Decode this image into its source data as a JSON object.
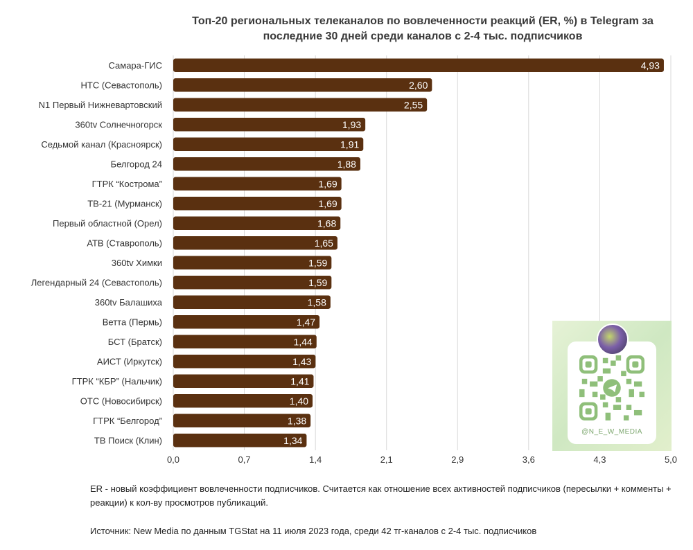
{
  "chart_data": {
    "type": "bar",
    "orientation": "horizontal",
    "title": "Топ-20 региональных телеканалов по вовлеченности реакций (ER, %) в Telegram за последние 30 дней среди каналов с 2-4 тыс. подписчиков",
    "title_lines": [
      "Топ-20 региональных телеканалов по вовлеченности реакций (ER, %) в Telegram за",
      "последние 30 дней среди каналов с 2-4 тыс. подписчиков"
    ],
    "categories": [
      "Самара-ГИС",
      "НТС (Севастополь)",
      "N1 Первый Нижневартовский",
      "360tv Солнечногорск",
      "Седьмой канал (Красноярск)",
      "Белгород 24",
      "ГТРК “Кострома”",
      "ТВ-21 (Мурманск)",
      "Первый областной (Орел)",
      "АТВ (Ставрополь)",
      "360tv Химки",
      "Легендарный 24 (Севастополь)",
      "360tv Балашиха",
      "Ветта (Пермь)",
      "БСТ (Братск)",
      "АИСТ (Иркутск)",
      "ГТРК “КБР” (Нальчик)",
      "ОТС (Новосибирск)",
      "ГТРК “Белгород”",
      "ТВ Поиск (Клин)"
    ],
    "values": [
      4.93,
      2.6,
      2.55,
      1.93,
      1.91,
      1.88,
      1.69,
      1.69,
      1.68,
      1.65,
      1.59,
      1.59,
      1.58,
      1.47,
      1.44,
      1.43,
      1.41,
      1.4,
      1.38,
      1.34
    ],
    "value_labels": [
      "4,93",
      "2,60",
      "2,55",
      "1,93",
      "1,91",
      "1,88",
      "1,69",
      "1,69",
      "1,68",
      "1,65",
      "1,59",
      "1,59",
      "1,58",
      "1,47",
      "1,44",
      "1,43",
      "1,41",
      "1,40",
      "1,38",
      "1,34"
    ],
    "xlim": [
      0,
      5
    ],
    "x_tick_values": [
      0,
      0.714,
      1.429,
      2.143,
      2.857,
      3.571,
      4.286,
      5.0
    ],
    "x_tick_labels": [
      "0,0",
      "0,7",
      "1,4",
      "2,1",
      "2,9",
      "3,6",
      "4,3",
      "5,0"
    ],
    "grid": true,
    "xlabel": "",
    "ylabel": ""
  },
  "colors": {
    "bar": "#5a3010",
    "bar_label": "#ffffff",
    "grid": "#d9d9d9",
    "text": "#333333"
  },
  "qr": {
    "handle": "@N_E_W_MEDIA",
    "icon": "telegram-icon"
  },
  "notes": {
    "definition": "ER - новый коэффициент вовлеченности подписчиков. Считается как отношение всех активностей подписчиков (пересылки + комменты + реакции) к кол-ву просмотров публикаций.",
    "source": "Источник: New Media по данным TGStat на 11 июля 2023 года, среди 42 тг-каналов с 2-4 тыс. подписчиков"
  }
}
